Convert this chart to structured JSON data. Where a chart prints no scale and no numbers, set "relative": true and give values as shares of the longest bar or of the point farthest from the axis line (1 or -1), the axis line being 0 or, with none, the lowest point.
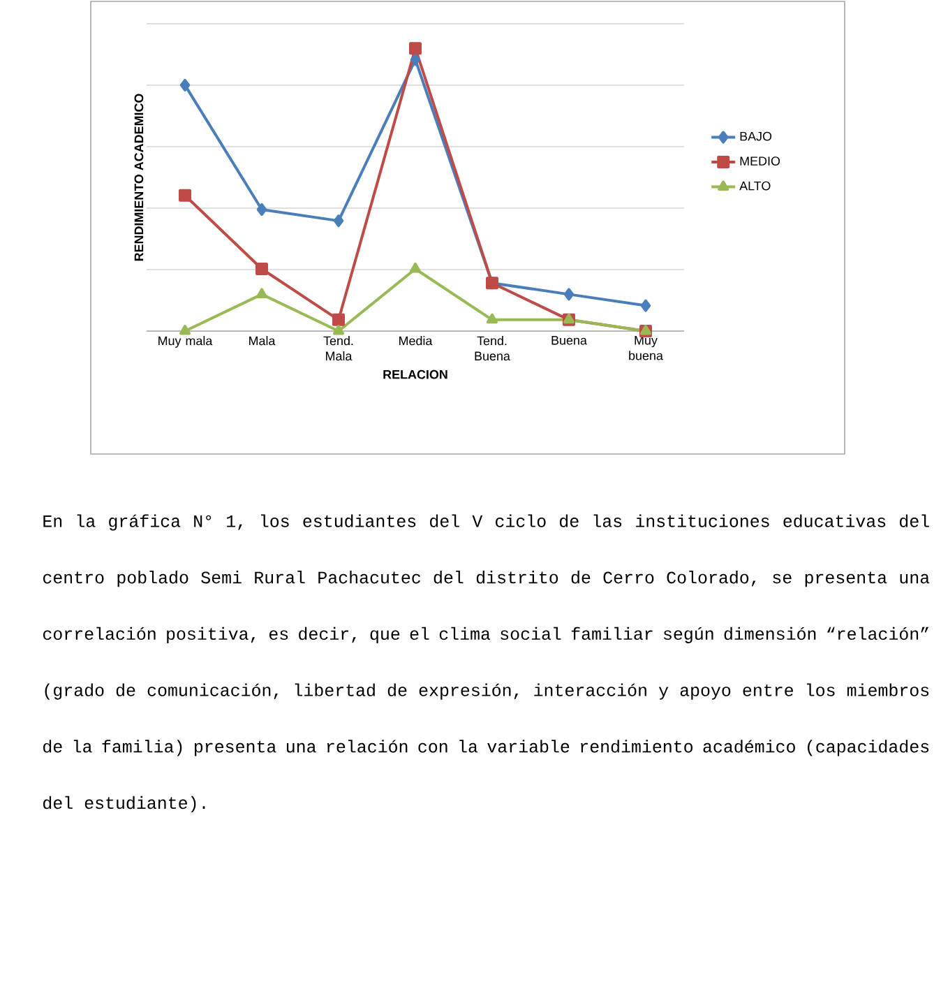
{
  "chart_data": {
    "type": "line",
    "xlabel": "RELACION",
    "ylabel": "RENDIMIENTO ACADEMICO",
    "relative": true,
    "grid": "y",
    "legend": "right",
    "line_style": "solid",
    "categories": [
      "Muy mala",
      "Mala",
      "Tend. Mala",
      "Media",
      "Tend. Buena",
      "Buena",
      "Muy buena"
    ],
    "series": [
      {
        "name": "BAJO",
        "color": "#4a7ebb",
        "marker": "diamond",
        "values": [
          0.87,
          0.43,
          0.39,
          0.96,
          0.17,
          0.13,
          0.09
        ]
      },
      {
        "name": "MEDIO",
        "color": "#be4b48",
        "marker": "square",
        "values": [
          0.48,
          0.22,
          0.04,
          1,
          0.17,
          0.04,
          0
        ]
      },
      {
        "name": "ALTO",
        "color": "#98b954",
        "marker": "triangle",
        "values": [
          0,
          0.13,
          0,
          0.22,
          0.04,
          0.04,
          0
        ]
      }
    ],
    "annotations": [
      "En la gráfica N° 1, los estudiantes del V ciclo de las instituciones educativas del centro poblado Semi Rural Pachacutec del distrito de Cerro Colorado, se presenta una correlación positiva, es decir, que el clima social familiar según dimensión “relación” (grado de comunicación, libertad de expresión, interacción y apoyo entre los miembros de la familia) presenta una relación con la variable rendimiento académico (capacidades del estudiante)."
    ]
  }
}
